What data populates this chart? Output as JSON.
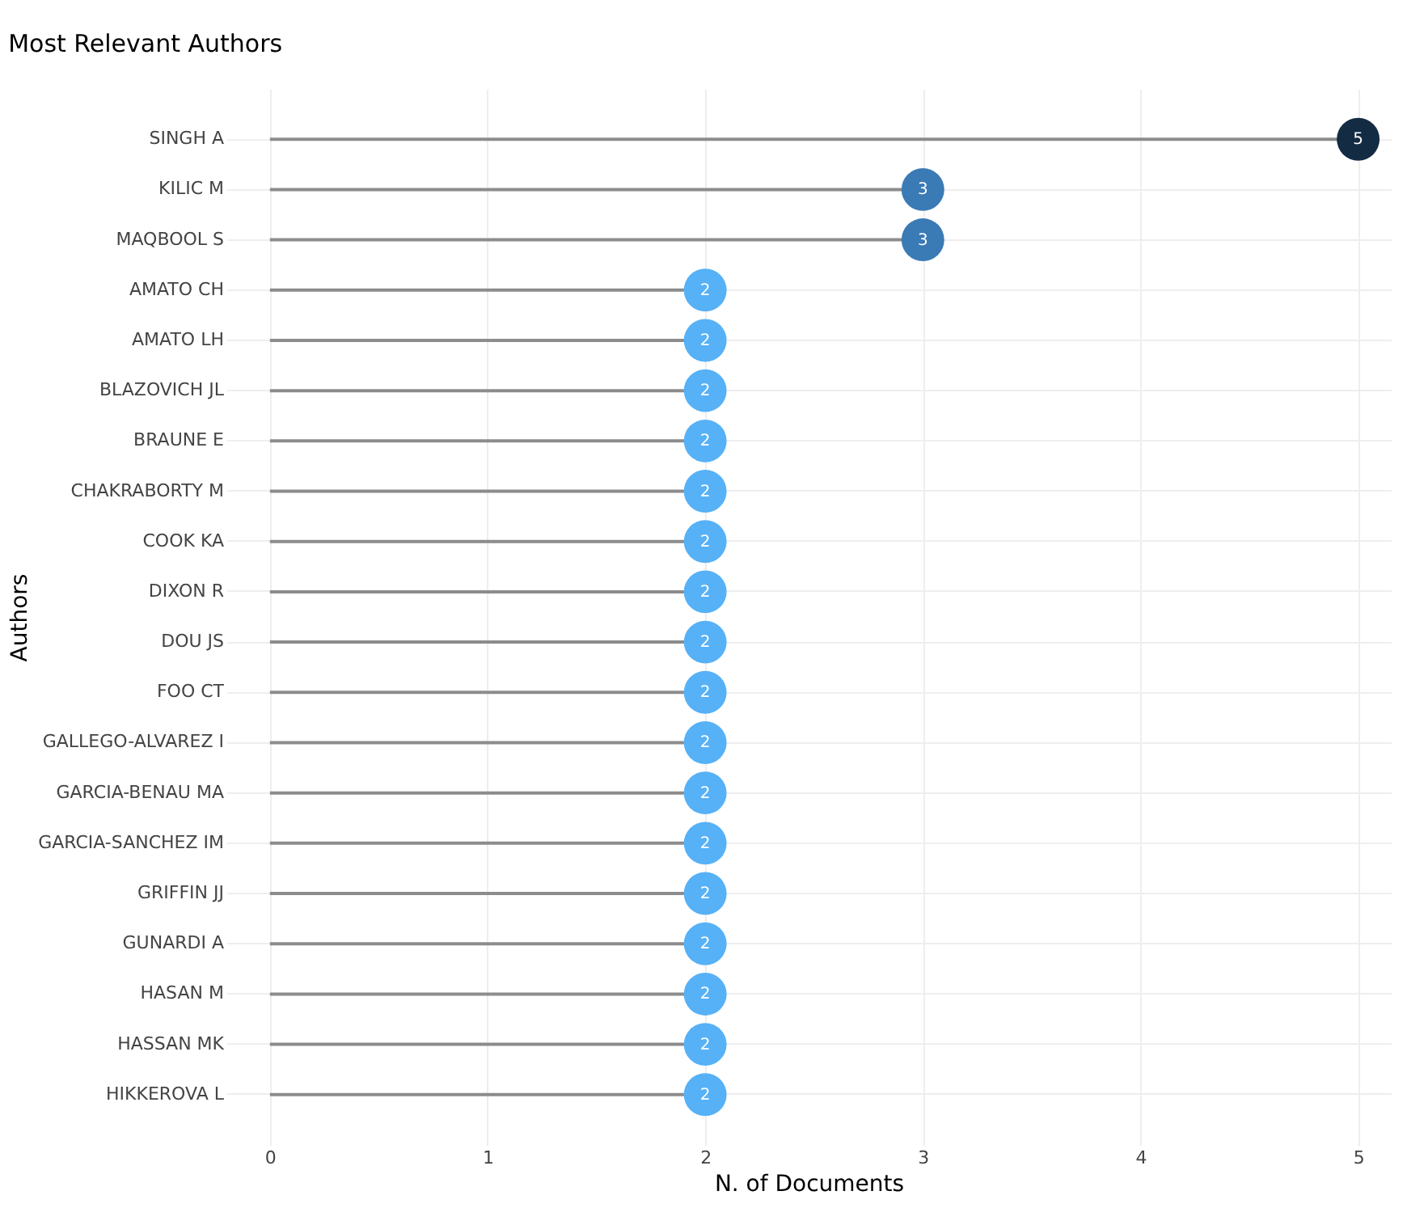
{
  "chart_data": {
    "type": "lollipop",
    "orientation": "horizontal",
    "title": "Most Relevant Authors",
    "xlabel": "N. of Documents",
    "ylabel": "Authors",
    "categories": [
      "SINGH A",
      "KILIC M",
      "MAQBOOL S",
      "AMATO CH",
      "AMATO LH",
      "BLAZOVICH JL",
      "BRAUNE E",
      "CHAKRABORTY M",
      "COOK KA",
      "DIXON R",
      "DOU JS",
      "FOO CT",
      "GALLEGO-ALVAREZ I",
      "GARCIA-BENAU MA",
      "GARCIA-SANCHEZ IM",
      "GRIFFIN JJ",
      "GUNARDI A",
      "HASAN M",
      "HASSAN MK",
      "HIKKEROVA L"
    ],
    "values": [
      5,
      3,
      3,
      2,
      2,
      2,
      2,
      2,
      2,
      2,
      2,
      2,
      2,
      2,
      2,
      2,
      2,
      2,
      2,
      2
    ],
    "colors": [
      "#132b43",
      "#3a7ab5",
      "#3a7ab5",
      "#56b1f7",
      "#56b1f7",
      "#56b1f7",
      "#56b1f7",
      "#56b1f7",
      "#56b1f7",
      "#56b1f7",
      "#56b1f7",
      "#56b1f7",
      "#56b1f7",
      "#56b1f7",
      "#56b1f7",
      "#56b1f7",
      "#56b1f7",
      "#56b1f7",
      "#56b1f7",
      "#56b1f7"
    ],
    "xlim": [
      -0.2,
      5.15
    ],
    "xticks": [
      0,
      1,
      2,
      3,
      4,
      5
    ],
    "grid": true,
    "data_labels": true
  }
}
